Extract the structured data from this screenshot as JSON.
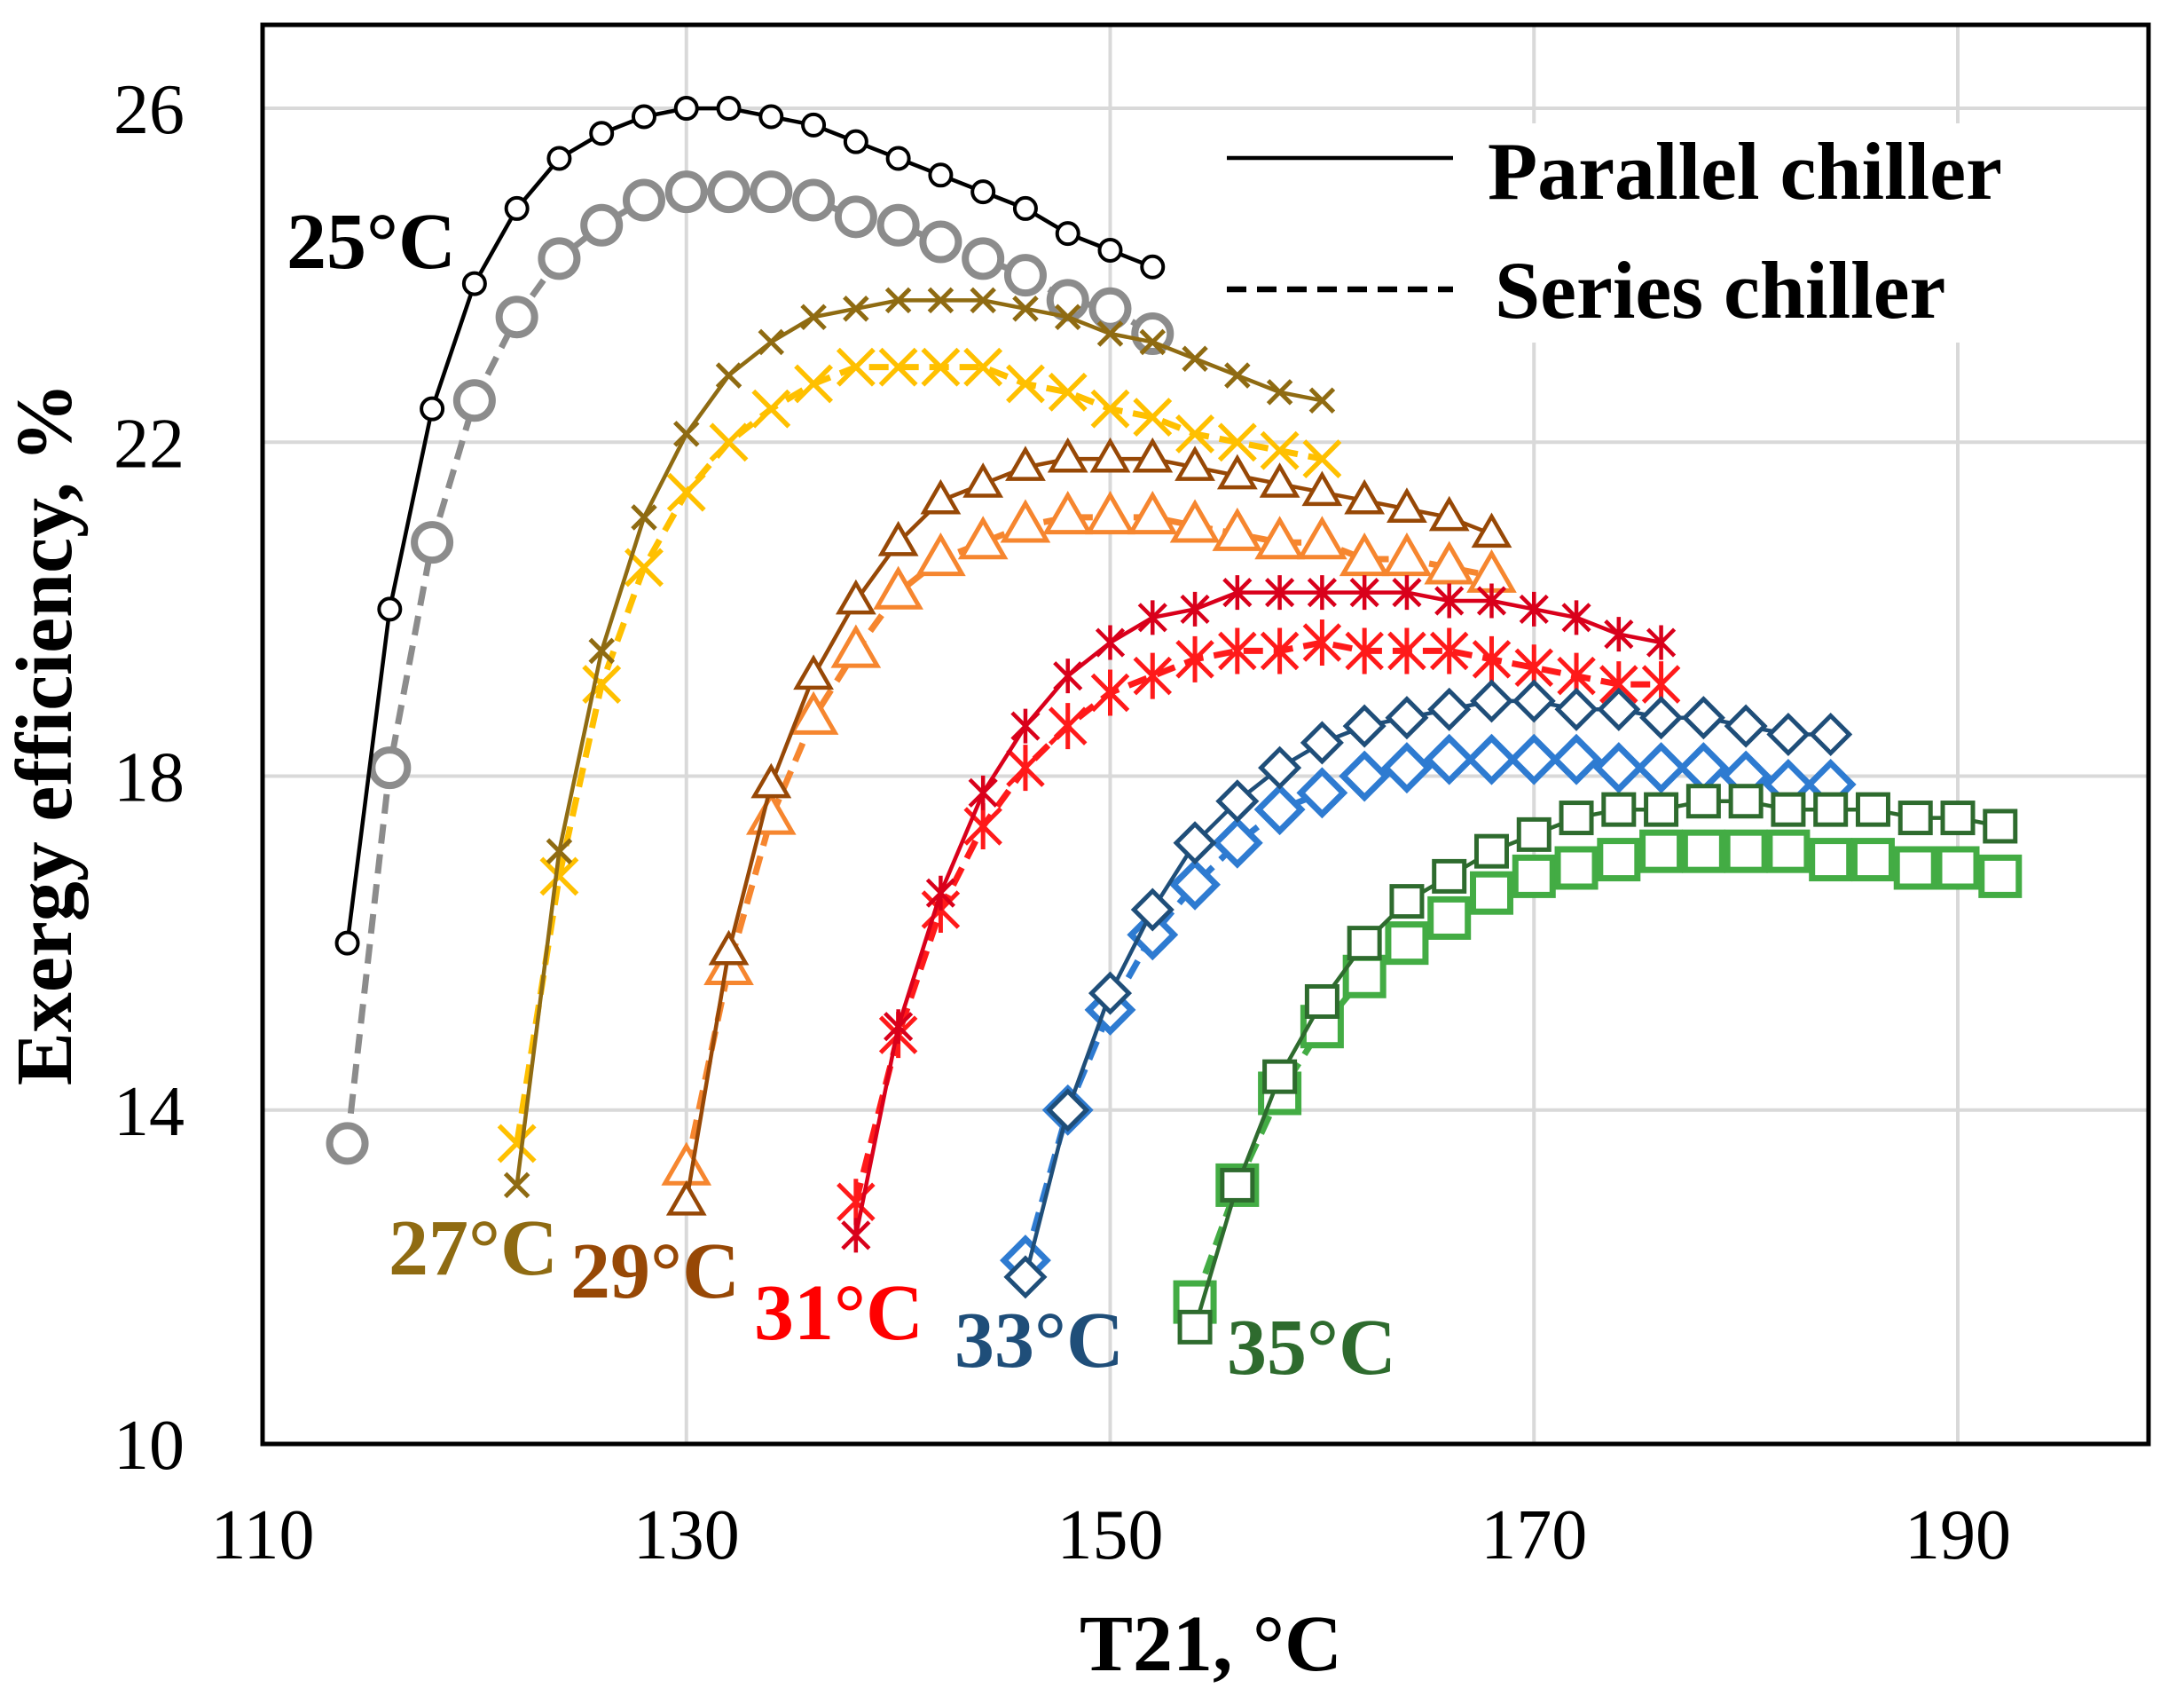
{
  "chart_data": {
    "type": "line",
    "title": "",
    "xlabel": "T21, °C",
    "ylabel": "Exergy efficiency, %",
    "xlim": [
      110,
      199
    ],
    "ylim": [
      10,
      27
    ],
    "xticks": [
      110,
      130,
      150,
      170,
      190
    ],
    "yticks": [
      10,
      14,
      18,
      22,
      26
    ],
    "grid": true,
    "legend_position": "top-right",
    "legend": [
      {
        "label": "Parallel chiller",
        "dashed": false
      },
      {
        "label": "Series chiller",
        "dashed": true
      }
    ],
    "curves": [
      {
        "label": "25°C",
        "label_color": "#000000",
        "x": [
          114,
          116,
          118,
          120,
          122,
          124,
          126,
          128,
          130,
          132,
          134,
          136,
          138,
          140,
          142,
          144,
          146,
          148,
          150,
          152
        ],
        "parallel": {
          "color": "#000000",
          "marker": "circle",
          "y": [
            16.0,
            20.0,
            22.4,
            23.9,
            24.8,
            25.4,
            25.7,
            25.9,
            26.0,
            26.0,
            25.9,
            25.8,
            25.6,
            25.4,
            25.2,
            25.0,
            24.8,
            24.5,
            24.3,
            24.1
          ]
        },
        "series": {
          "color": "#8C8C8C",
          "marker": "circle",
          "y": [
            13.6,
            18.1,
            20.8,
            22.5,
            23.5,
            24.2,
            24.6,
            24.9,
            25.0,
            25.0,
            25.0,
            24.9,
            24.7,
            24.6,
            24.4,
            24.2,
            24.0,
            23.7,
            23.6,
            23.3
          ]
        }
      },
      {
        "label": "27°C",
        "label_color": "#8F6B12",
        "x": [
          122,
          124,
          126,
          128,
          130,
          132,
          134,
          136,
          138,
          140,
          142,
          144,
          146,
          148,
          150,
          152,
          154,
          156,
          158,
          160
        ],
        "parallel": {
          "color": "#8F6B12",
          "marker": "x",
          "y": [
            13.1,
            17.1,
            19.5,
            21.1,
            22.1,
            22.8,
            23.2,
            23.5,
            23.6,
            23.7,
            23.7,
            23.7,
            23.6,
            23.5,
            23.3,
            23.2,
            23.0,
            22.8,
            22.6,
            22.5
          ]
        },
        "series": {
          "color": "#FFC000",
          "marker": "x",
          "y": [
            13.6,
            16.8,
            19.1,
            20.5,
            21.4,
            22.0,
            22.4,
            22.7,
            22.9,
            22.9,
            22.9,
            22.9,
            22.7,
            22.6,
            22.4,
            22.3,
            22.1,
            22.0,
            21.9,
            21.8
          ]
        }
      },
      {
        "label": "29°C",
        "label_color": "#974806",
        "x": [
          130,
          132,
          134,
          136,
          138,
          140,
          142,
          144,
          146,
          148,
          150,
          152,
          154,
          156,
          158,
          160,
          162,
          164,
          166,
          168
        ],
        "parallel": {
          "color": "#974806",
          "marker": "triangle",
          "y": [
            12.9,
            15.9,
            17.9,
            19.2,
            20.1,
            20.8,
            21.3,
            21.5,
            21.7,
            21.8,
            21.8,
            21.8,
            21.7,
            21.6,
            21.5,
            21.4,
            21.3,
            21.2,
            21.1,
            20.9
          ]
        },
        "series": {
          "color": "#F6862F",
          "marker": "triangle",
          "y": [
            13.3,
            15.7,
            17.5,
            18.7,
            19.5,
            20.2,
            20.6,
            20.8,
            21.0,
            21.1,
            21.1,
            21.1,
            21.0,
            20.9,
            20.8,
            20.8,
            20.6,
            20.6,
            20.5,
            20.4
          ]
        }
      },
      {
        "label": "31°C",
        "label_color": "#FF0000",
        "x": [
          138,
          140,
          142,
          144,
          146,
          148,
          150,
          152,
          154,
          156,
          158,
          160,
          162,
          164,
          166,
          168,
          170,
          172,
          174,
          176
        ],
        "parallel": {
          "color": "#D9001B",
          "marker": "asterisk",
          "y": [
            12.5,
            15.0,
            16.6,
            17.8,
            18.6,
            19.2,
            19.6,
            19.9,
            20.0,
            20.2,
            20.2,
            20.2,
            20.2,
            20.2,
            20.1,
            20.1,
            20.0,
            19.9,
            19.7,
            19.6
          ]
        },
        "series": {
          "color": "#FF1A1A",
          "marker": "asterisk",
          "y": [
            12.9,
            14.9,
            16.4,
            17.4,
            18.1,
            18.6,
            19.0,
            19.2,
            19.4,
            19.5,
            19.5,
            19.6,
            19.5,
            19.5,
            19.5,
            19.4,
            19.3,
            19.2,
            19.1,
            19.1
          ]
        }
      },
      {
        "label": "33°C",
        "label_color": "#1F4E79",
        "x": [
          146,
          148,
          150,
          152,
          154,
          156,
          158,
          160,
          162,
          164,
          166,
          168,
          170,
          172,
          174,
          176,
          178,
          180,
          182,
          184
        ],
        "parallel": {
          "color": "#1F4E79",
          "marker": "diamond",
          "y": [
            12.0,
            14.0,
            15.4,
            16.4,
            17.2,
            17.7,
            18.1,
            18.4,
            18.6,
            18.7,
            18.8,
            18.9,
            18.9,
            18.8,
            18.8,
            18.7,
            18.7,
            18.6,
            18.5,
            18.5
          ]
        },
        "series": {
          "color": "#2E7BD1",
          "marker": "diamond",
          "y": [
            12.2,
            14.0,
            15.2,
            16.1,
            16.7,
            17.2,
            17.6,
            17.8,
            18.0,
            18.1,
            18.2,
            18.2,
            18.2,
            18.2,
            18.1,
            18.1,
            18.1,
            18.0,
            17.9,
            17.9
          ]
        }
      },
      {
        "label": "35°C",
        "label_color": "#2E6B2E",
        "x": [
          154,
          156,
          158,
          160,
          162,
          164,
          166,
          168,
          170,
          172,
          174,
          176,
          178,
          180,
          182,
          184,
          186,
          188,
          190,
          192
        ],
        "parallel": {
          "color": "#2E6B2E",
          "marker": "square",
          "y": [
            11.4,
            13.1,
            14.4,
            15.3,
            16.0,
            16.5,
            16.8,
            17.1,
            17.3,
            17.5,
            17.6,
            17.6,
            17.7,
            17.7,
            17.6,
            17.6,
            17.6,
            17.5,
            17.5,
            17.4
          ]
        },
        "series": {
          "color": "#43AC44",
          "marker": "square",
          "y": [
            11.7,
            13.1,
            14.2,
            15.0,
            15.6,
            16.0,
            16.3,
            16.6,
            16.8,
            16.9,
            17.0,
            17.1,
            17.1,
            17.1,
            17.1,
            17.0,
            17.0,
            16.9,
            16.9,
            16.8
          ]
        }
      }
    ]
  }
}
